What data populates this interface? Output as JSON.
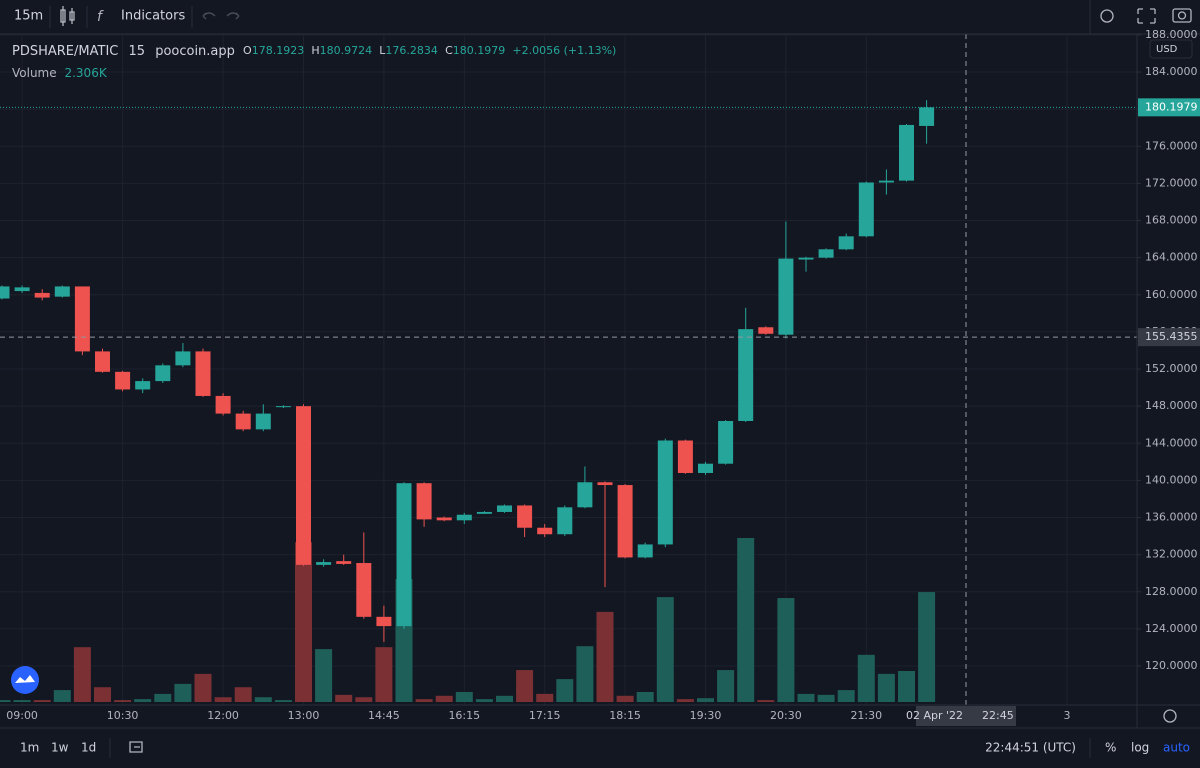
{
  "toolbar": {
    "interval": "15m",
    "indicators": "Indicators"
  },
  "chart_data": {
    "type": "candlestick",
    "title": "PDSHARE/MATIC",
    "interval": "15",
    "source": "poocoin.app",
    "legend": {
      "open": "O",
      "high": "H",
      "low": "L",
      "close": "C",
      "change": "+2.0056 (+1.13%)",
      "volume": "Volume",
      "volume_value": "2.306K"
    },
    "currency": "USD",
    "categories": [
      null,
      "09:00",
      null,
      null,
      null,
      null,
      "10:30",
      null,
      null,
      null,
      null,
      "12:00",
      null,
      null,
      null,
      "13:00",
      null,
      null,
      null,
      "14:45",
      null,
      null,
      null,
      "16:15",
      null,
      null,
      null,
      "17:15",
      null,
      null,
      null,
      "18:15",
      null,
      null,
      null,
      "19:30",
      null,
      null,
      null,
      "20:30",
      null,
      null,
      null,
      "21:30",
      null,
      null,
      null
    ],
    "open": [
      159.6,
      160.4,
      160.2,
      159.8,
      160.9,
      153.9,
      151.7,
      149.8,
      150.7,
      152.4,
      153.9,
      149.1,
      147.2,
      145.5,
      147.9,
      148.0,
      130.9,
      131.3,
      131.1,
      125.3,
      124.3,
      139.7,
      136.0,
      135.7,
      136.4,
      136.6,
      137.3,
      134.9,
      134.2,
      137.1,
      139.8,
      139.5,
      131.7,
      133.1,
      144.3,
      140.8,
      141.8,
      146.4,
      156.5,
      155.7,
      163.8,
      164.0,
      164.9,
      166.3,
      172.1,
      172.3,
      178.1923
    ],
    "high": [
      161.0,
      161.0,
      160.6,
      161.0,
      160.9,
      154.2,
      151.8,
      151.0,
      152.6,
      154.8,
      154.2,
      149.4,
      147.5,
      148.2,
      148.1,
      148.2,
      131.5,
      132.0,
      134.4,
      126.5,
      139.8,
      139.8,
      136.1,
      136.5,
      136.7,
      137.4,
      137.4,
      135.3,
      137.3,
      141.5,
      139.9,
      139.6,
      133.3,
      144.5,
      144.4,
      142.0,
      146.5,
      158.6,
      156.6,
      167.9,
      164.1,
      165.0,
      166.6,
      172.2,
      173.5,
      178.4,
      180.9724
    ],
    "low": [
      159.5,
      160.2,
      159.4,
      159.7,
      153.5,
      151.6,
      149.6,
      149.4,
      150.5,
      152.2,
      149.0,
      147.0,
      145.3,
      145.3,
      147.8,
      130.8,
      130.7,
      130.9,
      125.1,
      122.6,
      124.0,
      135.0,
      135.6,
      135.3,
      136.4,
      136.5,
      133.9,
      133.9,
      134.0,
      137.0,
      128.5,
      131.6,
      131.6,
      132.8,
      140.7,
      140.6,
      141.7,
      146.3,
      155.7,
      155.3,
      162.5,
      163.9,
      164.8,
      166.2,
      170.8,
      172.2,
      176.2834
    ],
    "close": [
      160.9,
      160.8,
      159.7,
      160.9,
      153.9,
      151.7,
      149.8,
      150.7,
      152.4,
      153.9,
      149.1,
      147.2,
      145.5,
      147.2,
      148.0,
      130.9,
      131.2,
      131.0,
      125.3,
      124.3,
      139.7,
      135.8,
      135.7,
      136.3,
      136.6,
      137.3,
      134.9,
      134.2,
      137.1,
      139.8,
      139.5,
      131.7,
      133.1,
      144.3,
      140.8,
      141.8,
      146.4,
      156.3,
      155.8,
      163.9,
      164.0,
      164.9,
      166.3,
      172.1,
      172.3,
      178.3,
      180.1979
    ],
    "volume": [
      40,
      40,
      40,
      250,
      1150,
      310,
      40,
      60,
      170,
      380,
      590,
      100,
      310,
      100,
      40,
      3350,
      1110,
      150,
      100,
      1150,
      2580,
      60,
      130,
      210,
      60,
      130,
      670,
      170,
      480,
      1170,
      1890,
      130,
      210,
      2200,
      60,
      80,
      670,
      3440,
      40,
      2180,
      170,
      150,
      250,
      990,
      590,
      650,
      2306
    ],
    "up_color": "#26a69a",
    "down_color": "#ef5350",
    "up_volume_color": "#1f5f5a",
    "down_volume_color": "#7b3034",
    "ylim": [
      115.8,
      188.1
    ],
    "yticks": [
      {
        "value": 188,
        "label": "188.0000"
      },
      {
        "value": 184,
        "label": "184.0000"
      },
      {
        "value": 180,
        "label": "180.0000"
      },
      {
        "value": 176,
        "label": "176.0000"
      },
      {
        "value": 172,
        "label": "172.0000"
      },
      {
        "value": 168,
        "label": "168.0000"
      },
      {
        "value": 164,
        "label": "164.0000"
      },
      {
        "value": 160,
        "label": "160.0000"
      },
      {
        "value": 156,
        "label": "156.0000"
      },
      {
        "value": 152,
        "label": "152.0000"
      },
      {
        "value": 148,
        "label": "148.0000"
      },
      {
        "value": 144,
        "label": "144.0000"
      },
      {
        "value": 140,
        "label": "140.0000"
      },
      {
        "value": 136,
        "label": "136.0000"
      },
      {
        "value": 132,
        "label": "132.0000"
      },
      {
        "value": 128,
        "label": "128.0000"
      },
      {
        "value": 124,
        "label": "124.0000"
      },
      {
        "value": 120,
        "label": "120.0000"
      }
    ],
    "grid": true,
    "crosshair": {
      "price": 155.4355,
      "date": "02 Apr '22",
      "time": "22:45"
    },
    "next_day_label": "3"
  },
  "footer": {
    "ranges": [
      "1m",
      "1w",
      "1d"
    ],
    "clock": "22:44:51 (UTC)",
    "percent": "%",
    "log": "log",
    "auto": "auto"
  }
}
